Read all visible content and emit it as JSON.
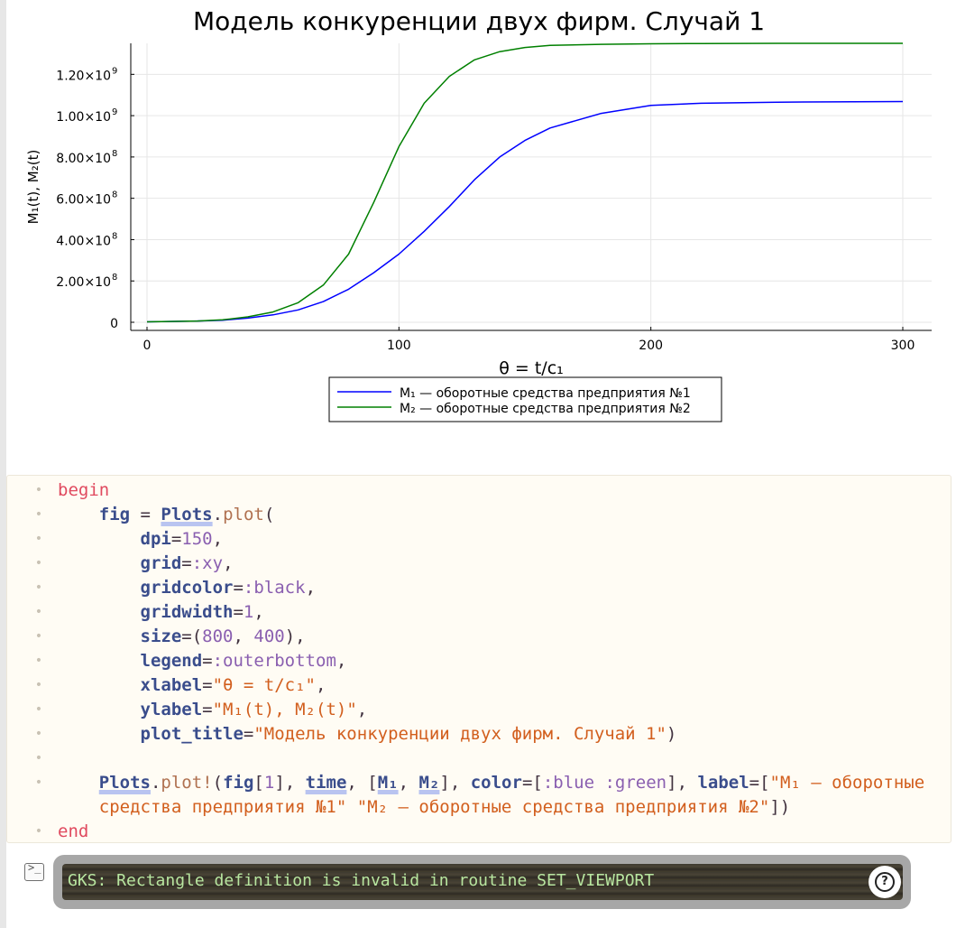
{
  "plot": {
    "title": "Модель конкуренции двух фирм. Случай 1",
    "xlabel": "θ = t/c₁",
    "ylabel": "M₁(t), M₂(t)"
  },
  "chart_data": {
    "type": "line",
    "title": "Модель конкуренции двух фирм. Случай 1",
    "xlabel": "θ = t/c₁",
    "ylabel": "M₁(t), M₂(t)",
    "xlim": [
      0,
      300
    ],
    "ylim": [
      0,
      1350000000.0
    ],
    "x_ticks": [
      {
        "value": 0,
        "label": "0"
      },
      {
        "value": 100,
        "label": "100"
      },
      {
        "value": 200,
        "label": "200"
      },
      {
        "value": 300,
        "label": "300"
      }
    ],
    "y_ticks": [
      {
        "value": 0,
        "mant": "0",
        "exp": ""
      },
      {
        "value": 200000000,
        "mant": "2.00×10",
        "exp": "8"
      },
      {
        "value": 400000000,
        "mant": "4.00×10",
        "exp": "8"
      },
      {
        "value": 600000000,
        "mant": "6.00×10",
        "exp": "8"
      },
      {
        "value": 800000000,
        "mant": "8.00×10",
        "exp": "8"
      },
      {
        "value": 1000000000,
        "mant": "1.00×10",
        "exp": "9"
      },
      {
        "value": 1200000000,
        "mant": "1.20×10",
        "exp": "9"
      }
    ],
    "grid": true,
    "legend_position": "outer-bottom",
    "x": [
      0,
      20,
      30,
      40,
      50,
      60,
      70,
      80,
      90,
      100,
      110,
      120,
      130,
      140,
      150,
      160,
      180,
      200,
      220,
      250,
      300
    ],
    "series": [
      {
        "name": "M₁ — оборотные средства предприятия №1",
        "color": "#0000ff",
        "values": [
          2000000,
          6000000,
          10000000,
          20000000,
          36000000,
          60000000,
          100000000,
          160000000,
          240000000,
          330000000,
          440000000,
          560000000,
          690000000,
          800000000,
          880000000,
          940000000,
          1010000000,
          1050000000,
          1060000000,
          1065000000,
          1068000000
        ]
      },
      {
        "name": "M₂ — оборотные средства предприятия №2",
        "color": "#008000",
        "values": [
          2000000,
          6000000,
          12000000,
          26000000,
          50000000,
          95000000,
          180000000,
          330000000,
          580000000,
          850000000,
          1060000000,
          1190000000,
          1270000000,
          1310000000,
          1330000000,
          1340000000,
          1345000000,
          1348000000,
          1349000000,
          1350000000,
          1350000000
        ]
      }
    ]
  },
  "code": {
    "lines": [
      [
        {
          "c": "kw",
          "t": "begin"
        }
      ],
      [
        {
          "c": "punct",
          "t": "    "
        },
        {
          "c": "var",
          "t": "fig"
        },
        {
          "c": "punct",
          "t": " = "
        },
        {
          "c": "mod",
          "t": "Plots"
        },
        {
          "c": "punct",
          "t": "."
        },
        {
          "c": "fn",
          "t": "plot"
        },
        {
          "c": "punct",
          "t": "("
        }
      ],
      [
        {
          "c": "punct",
          "t": "        "
        },
        {
          "c": "var",
          "t": "dpi"
        },
        {
          "c": "punct",
          "t": "="
        },
        {
          "c": "num",
          "t": "150"
        },
        {
          "c": "punct",
          "t": ","
        }
      ],
      [
        {
          "c": "punct",
          "t": "        "
        },
        {
          "c": "var",
          "t": "grid"
        },
        {
          "c": "punct",
          "t": "="
        },
        {
          "c": "sym",
          "t": ":xy"
        },
        {
          "c": "punct",
          "t": ","
        }
      ],
      [
        {
          "c": "punct",
          "t": "        "
        },
        {
          "c": "var",
          "t": "gridcolor"
        },
        {
          "c": "punct",
          "t": "="
        },
        {
          "c": "sym",
          "t": ":black"
        },
        {
          "c": "punct",
          "t": ","
        }
      ],
      [
        {
          "c": "punct",
          "t": "        "
        },
        {
          "c": "var",
          "t": "gridwidth"
        },
        {
          "c": "punct",
          "t": "="
        },
        {
          "c": "num",
          "t": "1"
        },
        {
          "c": "punct",
          "t": ","
        }
      ],
      [
        {
          "c": "punct",
          "t": "        "
        },
        {
          "c": "var",
          "t": "size"
        },
        {
          "c": "punct",
          "t": "=("
        },
        {
          "c": "num",
          "t": "800"
        },
        {
          "c": "punct",
          "t": ", "
        },
        {
          "c": "num",
          "t": "400"
        },
        {
          "c": "punct",
          "t": "),"
        }
      ],
      [
        {
          "c": "punct",
          "t": "        "
        },
        {
          "c": "var",
          "t": "legend"
        },
        {
          "c": "punct",
          "t": "="
        },
        {
          "c": "sym",
          "t": ":outerbottom"
        },
        {
          "c": "punct",
          "t": ","
        }
      ],
      [
        {
          "c": "punct",
          "t": "        "
        },
        {
          "c": "var",
          "t": "xlabel"
        },
        {
          "c": "punct",
          "t": "="
        },
        {
          "c": "str",
          "t": "\"θ = t/c₁\""
        },
        {
          "c": "punct",
          "t": ","
        }
      ],
      [
        {
          "c": "punct",
          "t": "        "
        },
        {
          "c": "var",
          "t": "ylabel"
        },
        {
          "c": "punct",
          "t": "="
        },
        {
          "c": "str",
          "t": "\"M₁(t), M₂(t)\""
        },
        {
          "c": "punct",
          "t": ","
        }
      ],
      [
        {
          "c": "punct",
          "t": "        "
        },
        {
          "c": "var",
          "t": "plot_title"
        },
        {
          "c": "punct",
          "t": "="
        },
        {
          "c": "str",
          "t": "\"Модель конкуренции двух фирм. Случай 1\""
        },
        {
          "c": "punct",
          "t": ")"
        }
      ],
      [],
      [
        {
          "c": "punct",
          "t": "    "
        },
        {
          "c": "mod",
          "t": "Plots"
        },
        {
          "c": "punct",
          "t": "."
        },
        {
          "c": "fn",
          "t": "plot!"
        },
        {
          "c": "punct",
          "t": "("
        },
        {
          "c": "var",
          "t": "fig"
        },
        {
          "c": "punct",
          "t": "["
        },
        {
          "c": "num",
          "t": "1"
        },
        {
          "c": "punct",
          "t": "], "
        },
        {
          "c": "mod",
          "t": "time"
        },
        {
          "c": "punct",
          "t": ", ["
        },
        {
          "c": "mod",
          "t": "M₁"
        },
        {
          "c": "punct",
          "t": ", "
        },
        {
          "c": "mod",
          "t": "M₂"
        },
        {
          "c": "punct",
          "t": "], "
        },
        {
          "c": "var",
          "t": "color"
        },
        {
          "c": "punct",
          "t": "=["
        },
        {
          "c": "sym",
          "t": ":blue"
        },
        {
          "c": "punct",
          "t": " "
        },
        {
          "c": "sym",
          "t": ":green"
        },
        {
          "c": "punct",
          "t": "], "
        },
        {
          "c": "var",
          "t": "label"
        },
        {
          "c": "punct",
          "t": "=["
        },
        {
          "c": "str",
          "t": "\"M₁ — оборотные"
        }
      ],
      [
        {
          "c": "str",
          "t": "    средства предприятия №1\""
        },
        {
          "c": "punct",
          "t": " "
        },
        {
          "c": "str",
          "t": "\"M₂ — оборотные средства предприятия №2\""
        },
        {
          "c": "punct",
          "t": "])"
        }
      ],
      [
        {
          "c": "kw",
          "t": "end"
        }
      ]
    ],
    "gutter_marks": [
      true,
      true,
      true,
      true,
      true,
      true,
      true,
      true,
      true,
      true,
      true,
      true,
      true,
      false,
      true
    ]
  },
  "log": {
    "message": "GKS: Rectangle definition is invalid in routine SET_VIEWPORT",
    "help_label": "?",
    "terminal_glyph": ">_"
  }
}
